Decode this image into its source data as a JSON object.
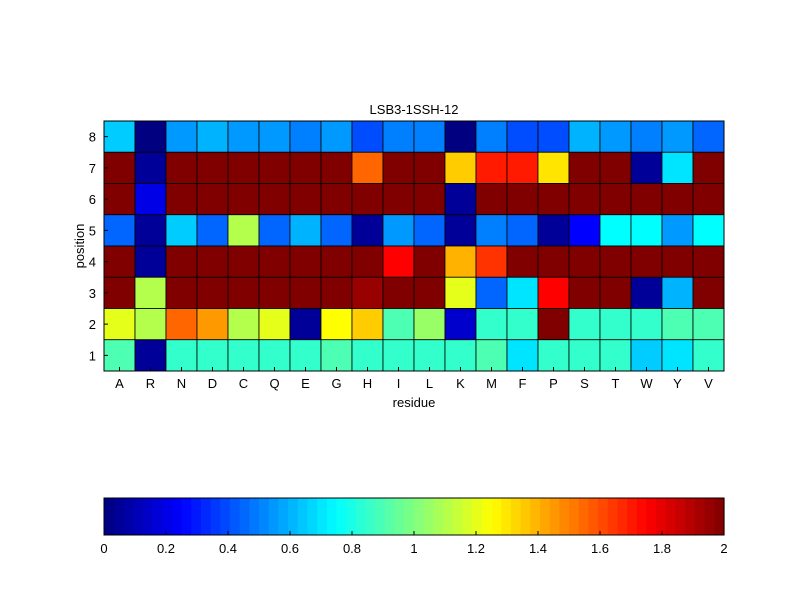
{
  "chart_data": {
    "type": "heatmap",
    "title": "LSB3-1SSH-12",
    "xlabel": "residue",
    "ylabel": "position",
    "colormap": "jet",
    "clim": [
      0,
      2
    ],
    "grid": true,
    "x_categories": [
      "A",
      "R",
      "N",
      "D",
      "C",
      "Q",
      "E",
      "G",
      "H",
      "I",
      "L",
      "K",
      "M",
      "F",
      "P",
      "S",
      "T",
      "W",
      "Y",
      "V"
    ],
    "y_categories": [
      "8",
      "7",
      "6",
      "5",
      "4",
      "3",
      "2",
      "1"
    ],
    "values": [
      [
        0.65,
        0.0,
        0.55,
        0.6,
        0.55,
        0.55,
        0.5,
        0.55,
        0.4,
        0.5,
        0.5,
        0.0,
        0.5,
        0.4,
        0.4,
        0.6,
        0.55,
        0.5,
        0.55,
        0.45
      ],
      [
        2.0,
        0.05,
        2.0,
        2.0,
        2.0,
        2.0,
        2.0,
        2.0,
        1.55,
        2.0,
        2.0,
        1.35,
        1.7,
        1.7,
        1.3,
        2.0,
        2.0,
        0.05,
        0.7,
        2.0
      ],
      [
        2.0,
        0.2,
        2.0,
        2.0,
        2.0,
        2.0,
        2.0,
        2.0,
        2.0,
        2.0,
        2.0,
        0.05,
        2.0,
        2.0,
        2.0,
        2.0,
        2.0,
        2.0,
        2.0,
        2.0
      ],
      [
        0.45,
        0.05,
        0.65,
        0.45,
        1.1,
        0.45,
        0.6,
        0.45,
        0.05,
        0.55,
        0.45,
        0.05,
        0.5,
        0.45,
        0.05,
        0.25,
        0.75,
        0.75,
        0.55,
        0.75
      ],
      [
        2.0,
        0.05,
        2.0,
        2.0,
        2.0,
        2.0,
        2.0,
        2.0,
        2.0,
        1.75,
        2.0,
        1.4,
        1.65,
        2.0,
        2.0,
        2.0,
        2.0,
        2.0,
        2.0,
        2.0
      ],
      [
        2.0,
        1.1,
        2.0,
        2.0,
        2.0,
        2.0,
        2.0,
        2.0,
        1.95,
        2.0,
        2.0,
        1.2,
        0.45,
        0.7,
        1.75,
        2.0,
        2.0,
        0.05,
        0.6,
        2.0
      ],
      [
        1.2,
        1.1,
        1.55,
        1.45,
        1.1,
        1.2,
        0.05,
        1.25,
        1.35,
        0.9,
        1.05,
        0.15,
        0.85,
        0.85,
        2.0,
        0.85,
        0.85,
        0.85,
        0.9,
        0.9
      ],
      [
        0.9,
        0.05,
        0.85,
        0.85,
        0.85,
        0.85,
        0.85,
        0.9,
        0.85,
        0.85,
        0.85,
        0.85,
        0.9,
        0.7,
        0.85,
        0.85,
        0.85,
        0.65,
        0.7,
        0.85
      ]
    ],
    "colorbar": {
      "ticks": [
        "0",
        "0.2",
        "0.4",
        "0.6",
        "0.8",
        "1",
        "1.2",
        "1.4",
        "1.6",
        "1.8",
        "2"
      ],
      "tick_values": [
        0,
        0.2,
        0.4,
        0.6,
        0.8,
        1.0,
        1.2,
        1.4,
        1.6,
        1.8,
        2.0
      ],
      "levels": 64
    }
  }
}
